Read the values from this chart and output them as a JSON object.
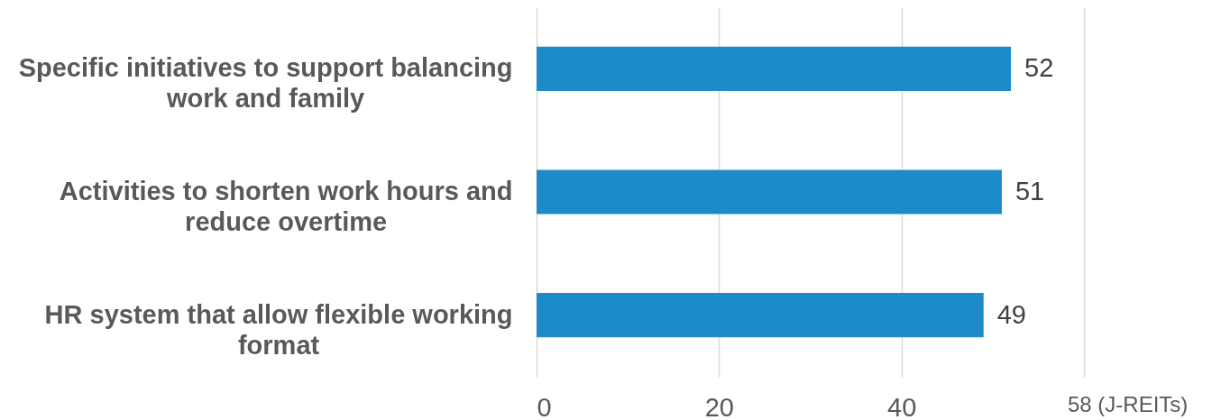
{
  "chart_data": {
    "type": "bar",
    "orientation": "horizontal",
    "categories": [
      "Specific initiatives to support balancing work and family",
      "Activities to shorten work hours and reduce overtime",
      "HR system that allow flexible working format"
    ],
    "values": [
      52,
      51,
      49
    ],
    "color": "#1e8bc9",
    "xlim": [
      0,
      60
    ],
    "xticks": [
      0,
      20,
      40,
      {
        "value": 60,
        "label": null
      }
    ],
    "grid": "x",
    "data_labels": true,
    "annotations": [
      "58 (J-REITs)"
    ]
  }
}
